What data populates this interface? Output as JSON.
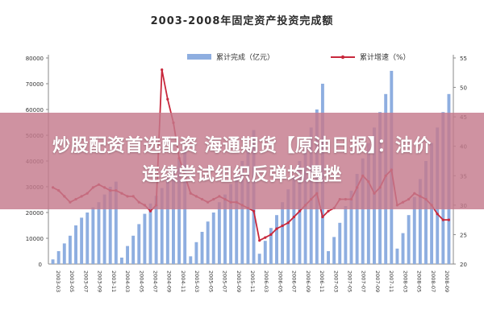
{
  "overlay": {
    "line1": "炒股配资首选配资 海通期货【原油日报】：油价",
    "line2": "连续尝试组织反弹均遇挫"
  },
  "chart_data": {
    "type": "bar+line",
    "title": "2003-2008年固定资产投资完成额",
    "series": [
      {
        "name": "累计完成（亿元）",
        "type": "bar",
        "axis": "left",
        "color": "#8eaee0",
        "values": [
          1800,
          5000,
          8000,
          11000,
          15000,
          18000,
          20000,
          22000,
          24000,
          27000,
          30000,
          32000,
          2500,
          7000,
          11000,
          15500,
          19500,
          23500,
          26500,
          29500,
          33500,
          38000,
          41000,
          45000,
          3000,
          8500,
          12500,
          16500,
          20000,
          24000,
          27000,
          31000,
          35000,
          40000,
          46000,
          52000,
          4000,
          9000,
          14000,
          19000,
          24000,
          29000,
          34000,
          40000,
          46500,
          53000,
          60000,
          70000,
          5000,
          10500,
          16000,
          22500,
          28500,
          35000,
          41000,
          47000,
          53000,
          59000,
          66000,
          75000,
          6000,
          12000,
          19000,
          26000,
          33000,
          40000,
          47000,
          53000,
          59000,
          66000
        ]
      },
      {
        "name": "累计增速（%）",
        "type": "line",
        "axis": "right",
        "color": "#c8283c",
        "values": [
          33,
          32.5,
          31.5,
          30.5,
          31,
          31.5,
          32,
          33,
          33.5,
          33,
          32.5,
          32.5,
          32,
          31.5,
          31.5,
          30.5,
          30,
          29,
          30,
          53,
          48,
          44,
          38,
          35,
          32,
          31.5,
          31,
          30.5,
          31,
          31.5,
          31,
          30.5,
          30.5,
          30,
          29.5,
          29,
          24,
          24.5,
          25,
          26,
          26.5,
          27,
          28,
          29,
          30,
          31,
          32,
          28,
          29,
          29.5,
          31,
          31,
          31,
          33,
          35,
          34,
          32,
          33,
          35,
          36,
          30,
          30.5,
          31,
          32,
          31.5,
          31,
          30,
          28.5,
          27.5,
          27.5
        ]
      }
    ],
    "y_left": {
      "ticks": [
        "10000",
        "20000",
        "30000",
        "40000",
        "50000",
        "60000",
        "70000",
        "80000"
      ],
      "lim": [
        0,
        80000
      ]
    },
    "y_right": {
      "ticks": [
        "20",
        "25",
        "30",
        "35",
        "40",
        "45",
        "50",
        "55"
      ],
      "lim": [
        20,
        55
      ]
    },
    "x_ticks": [
      "2003-03",
      "2003-05",
      "2003-07",
      "2003-09",
      "2003-11",
      "2004-03",
      "2004-05",
      "2004-07",
      "2004-09",
      "2004-11",
      "2005-03",
      "2005-05",
      "2005-07",
      "2005-09",
      "2005-11",
      "2006-03",
      "2006-05",
      "2006-07",
      "2006-09",
      "2006-11",
      "2007-03",
      "2007-05",
      "2007-07",
      "2007-09",
      "2007-11",
      "2008-03",
      "2008-05",
      "2008-07",
      "2008-09"
    ],
    "legend_position": "top-center",
    "grid": false
  }
}
